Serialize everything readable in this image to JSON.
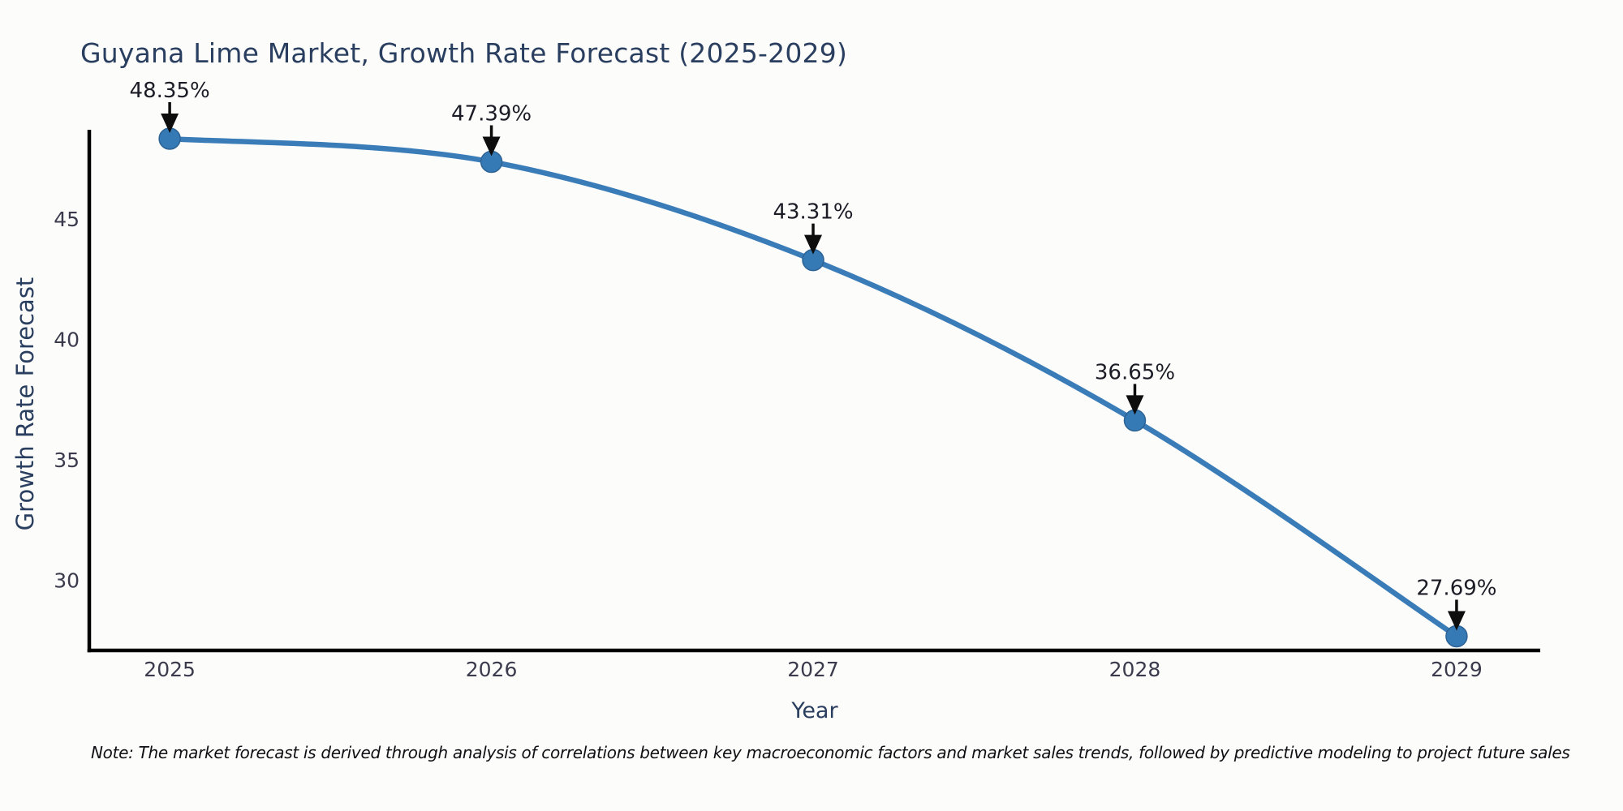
{
  "title": "Guyana Lime Market, Growth Rate Forecast (2025-2029)",
  "note": "Note: The market forecast is derived through analysis of correlations between key macroeconomic factors and market sales trends, followed by predictive modeling to project future sales",
  "chart_data": {
    "type": "line",
    "title": "Guyana Lime Market, Growth Rate Forecast (2025-2029)",
    "xlabel": "Year",
    "ylabel": "Growth Rate Forecast",
    "x": [
      2025,
      2026,
      2027,
      2028,
      2029
    ],
    "values": [
      48.35,
      47.39,
      43.31,
      36.65,
      27.69
    ],
    "point_labels": [
      "48.35%",
      "47.39%",
      "43.31%",
      "36.65%",
      "27.69%"
    ],
    "xticks": [
      "2025",
      "2026",
      "2027",
      "2028",
      "2029"
    ],
    "yticks": [
      30,
      35,
      40,
      45
    ],
    "xlim": [
      2024.75,
      2029.26
    ],
    "ylim": [
      27.1,
      48.72
    ],
    "grid": false,
    "legend": "none",
    "line_shape": "spline",
    "colors": {
      "line": "#3a7cb8",
      "marker_fill": "#3579b5",
      "marker_edge": "#2d6395",
      "axis": "#000000",
      "annotation_text": "#1c1c26",
      "arrow": "#0d0d0d",
      "tick_text": "#3b3b4d",
      "heading_text": "#2a3f5f"
    }
  }
}
